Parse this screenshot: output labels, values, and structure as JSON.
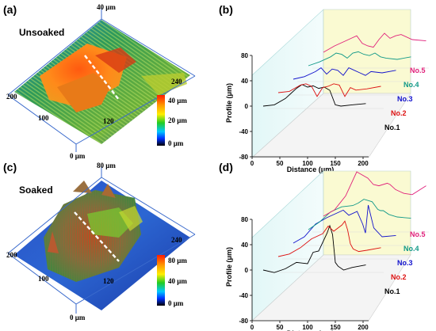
{
  "panels": [
    {
      "id": "a",
      "label": "(a)",
      "title": "Unsoaked",
      "box_labels": [
        "40 μm",
        "200",
        "240",
        "100",
        "120",
        "0 μm"
      ],
      "colorbar": {
        "ticks": [
          "40 μm",
          "20 μm",
          "0 μm"
        ],
        "colors": [
          "#ff1a00",
          "#ff9900",
          "#ffee00",
          "#22cc22",
          "#00c8ff",
          "#0030ff",
          "#000000"
        ]
      }
    },
    {
      "id": "c",
      "label": "(c)",
      "title": "Soaked",
      "box_labels": [
        "80 μm",
        "200",
        "240",
        "100",
        "120",
        "0 μm"
      ],
      "colorbar": {
        "ticks": [
          "80 μm",
          "40 μm",
          "0 μm"
        ],
        "colors": [
          "#ff1a00",
          "#ff9900",
          "#ffee00",
          "#22cc22",
          "#00c8ff",
          "#0030ff",
          "#000000"
        ]
      }
    }
  ],
  "chart_data": [
    {
      "type": "line",
      "panel": "(b)",
      "xlabel": "Distance (μm)",
      "ylabel": "Profile (μm)",
      "xticks": [
        0,
        50,
        100,
        150,
        200
      ],
      "yticks": [
        80,
        40,
        0,
        -40,
        -80
      ],
      "xlim": [
        0,
        210
      ],
      "ylim": [
        -80,
        80
      ],
      "x": [
        20,
        40,
        60,
        70,
        80,
        90,
        100,
        110,
        120,
        130,
        140,
        150,
        160,
        180,
        205
      ],
      "series": [
        {
          "name": "No.1",
          "color": "#000000",
          "values": [
            0,
            2,
            12,
            20,
            28,
            34,
            30,
            32,
            28,
            30,
            25,
            2,
            0,
            2,
            4
          ]
        },
        {
          "name": "No.2",
          "color": "#dd1111",
          "values": [
            0,
            2,
            12,
            14,
            10,
            -6,
            8,
            10,
            14,
            12,
            -6,
            8,
            4,
            6,
            10
          ]
        },
        {
          "name": "No.3",
          "color": "#1111cc",
          "values": [
            0,
            4,
            12,
            18,
            8,
            16,
            14,
            6,
            18,
            14,
            10,
            6,
            12,
            10,
            14
          ]
        },
        {
          "name": "No.4",
          "color": "#119988",
          "values": [
            0,
            6,
            14,
            20,
            18,
            12,
            20,
            22,
            18,
            16,
            20,
            14,
            12,
            10,
            14
          ]
        },
        {
          "name": "No.5",
          "color": "#e0207a",
          "values": [
            0,
            10,
            18,
            22,
            26,
            14,
            10,
            8,
            20,
            30,
            22,
            26,
            28,
            20,
            18
          ]
        }
      ]
    },
    {
      "type": "line",
      "panel": "(d)",
      "xlabel": "Distance (μm)",
      "ylabel": "Profile (μm)",
      "xticks": [
        0,
        50,
        100,
        150,
        200
      ],
      "yticks": [
        80,
        40,
        0,
        -40,
        -80
      ],
      "xlim": [
        0,
        210
      ],
      "ylim": [
        -80,
        80
      ],
      "x": [
        20,
        40,
        60,
        80,
        100,
        110,
        120,
        135,
        140,
        145,
        150,
        155,
        165,
        180,
        205
      ],
      "series": [
        {
          "name": "No.1",
          "color": "#000000",
          "values": [
            0,
            -4,
            2,
            12,
            10,
            28,
            30,
            58,
            70,
            56,
            12,
            6,
            0,
            4,
            8
          ]
        },
        {
          "name": "No.2",
          "color": "#dd1111",
          "values": [
            0,
            4,
            14,
            28,
            36,
            48,
            40,
            50,
            56,
            42,
            20,
            12,
            8,
            10,
            14
          ]
        },
        {
          "name": "No.3",
          "color": "#1111cc",
          "values": [
            0,
            10,
            30,
            40,
            48,
            52,
            44,
            50,
            40,
            30,
            16,
            60,
            24,
            10,
            12
          ]
        },
        {
          "name": "No.4",
          "color": "#119988",
          "values": [
            0,
            12,
            28,
            36,
            38,
            42,
            48,
            44,
            38,
            32,
            30,
            30,
            24,
            20,
            18
          ]
        },
        {
          "name": "No.5",
          "color": "#e0207a",
          "values": [
            0,
            10,
            32,
            70,
            60,
            50,
            48,
            52,
            50,
            46,
            42,
            40,
            36,
            34,
            48
          ]
        }
      ]
    }
  ]
}
